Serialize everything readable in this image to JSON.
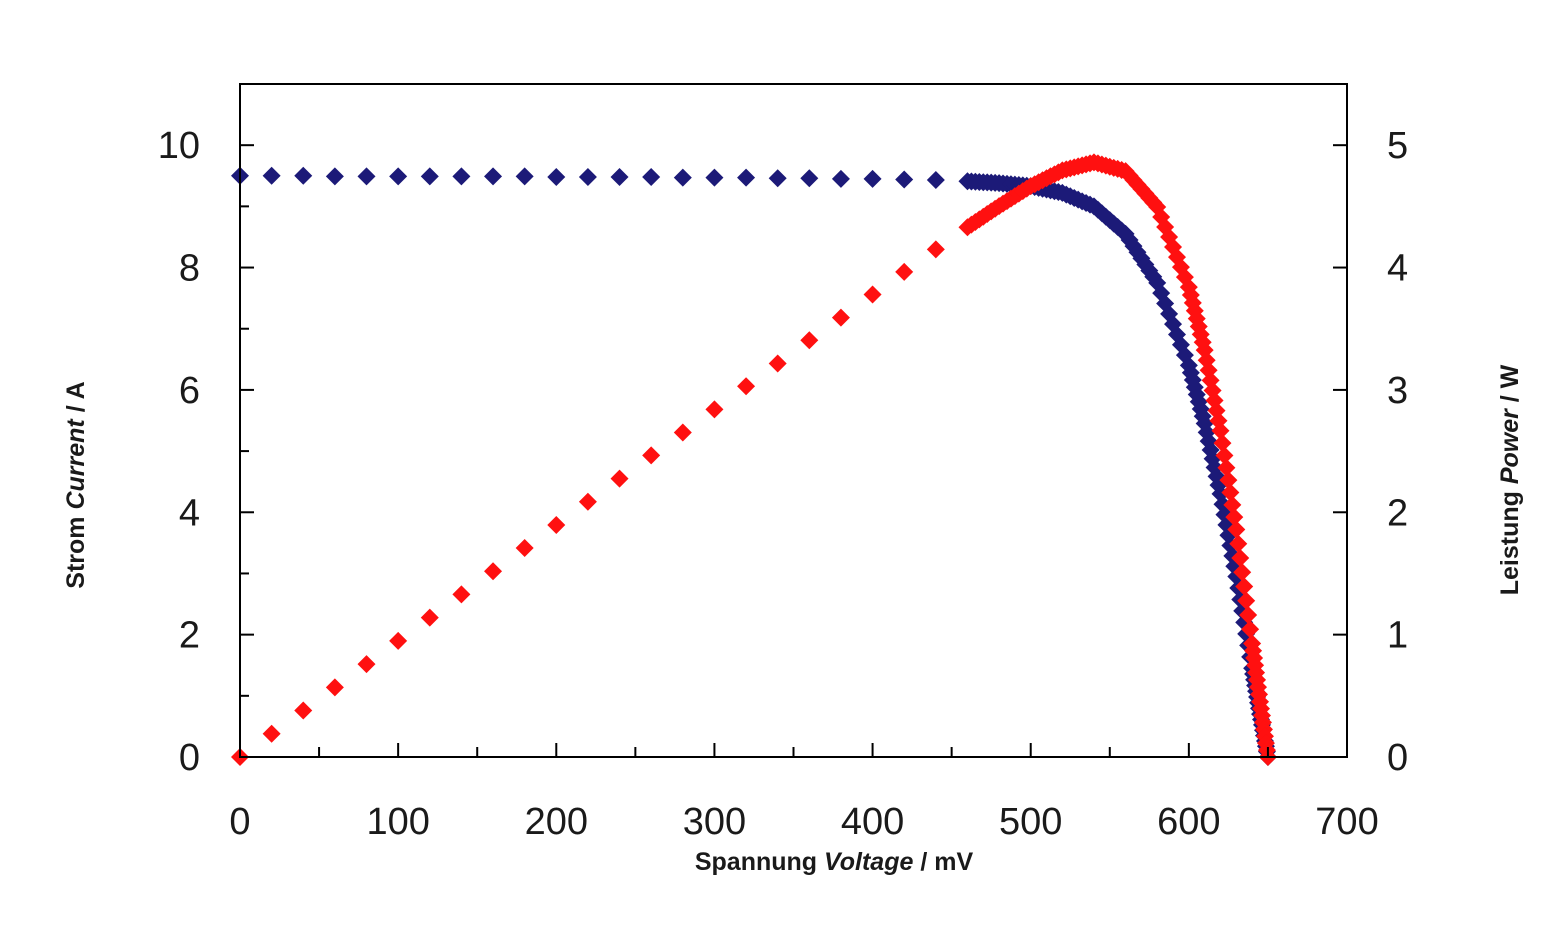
{
  "chart_data": {
    "type": "scatter",
    "title": "",
    "x_axis": {
      "label_plain": "Spannung ",
      "label_italic": "Voltage",
      "label_unit": " / mV",
      "min": 0,
      "max": 700,
      "major_step": 100,
      "minor_step": 50,
      "tick_labels": [
        "0",
        "100",
        "200",
        "300",
        "400",
        "500",
        "600",
        "700"
      ]
    },
    "y_left_axis": {
      "label_plain": "Strom ",
      "label_italic": "Current",
      "label_unit": " / A",
      "min": 0,
      "max": 11,
      "major_step": 2,
      "minor_step": 1,
      "tick_labels": [
        "0",
        "2",
        "4",
        "6",
        "8",
        "10"
      ]
    },
    "y_right_axis": {
      "label_plain": "Leistung ",
      "label_italic": "Power",
      "label_unit": " / W",
      "min": 0,
      "max": 5.5,
      "major_step": 1,
      "tick_labels": [
        "0",
        "1",
        "2",
        "3",
        "4",
        "5"
      ]
    },
    "grid": false,
    "legend": "none",
    "series": [
      {
        "axis": "left",
        "marker": "diamond",
        "color": "#1c1a78",
        "x": [
          0,
          20,
          40,
          60,
          80,
          100,
          120,
          140,
          160,
          180,
          200,
          220,
          240,
          260,
          280,
          300,
          320,
          340,
          360,
          380,
          400,
          420,
          440,
          460,
          480,
          500,
          520,
          540,
          560,
          580,
          600,
          610,
          620,
          630,
          640,
          645,
          650
        ],
        "y": [
          9.5,
          9.5,
          9.5,
          9.49,
          9.49,
          9.49,
          9.49,
          9.49,
          9.49,
          9.49,
          9.48,
          9.48,
          9.48,
          9.48,
          9.47,
          9.47,
          9.47,
          9.46,
          9.46,
          9.45,
          9.45,
          9.44,
          9.43,
          9.41,
          9.38,
          9.33,
          9.22,
          9.0,
          8.55,
          7.75,
          6.4,
          5.45,
          4.3,
          2.95,
          1.45,
          0.7,
          0.0
        ]
      },
      {
        "axis": "right",
        "marker": "diamond",
        "color": "#ff1010",
        "x": [
          0,
          20,
          40,
          60,
          80,
          100,
          120,
          140,
          160,
          180,
          200,
          220,
          240,
          260,
          280,
          300,
          320,
          340,
          360,
          380,
          400,
          420,
          440,
          460,
          480,
          500,
          520,
          540,
          560,
          580,
          600,
          610,
          620,
          630,
          640,
          645,
          650
        ],
        "y": [
          0.0,
          0.19,
          0.38,
          0.569,
          0.759,
          0.949,
          1.139,
          1.329,
          1.518,
          1.708,
          1.896,
          2.086,
          2.275,
          2.465,
          2.652,
          2.841,
          3.03,
          3.216,
          3.406,
          3.591,
          3.78,
          3.965,
          4.149,
          4.329,
          4.502,
          4.665,
          4.794,
          4.86,
          4.788,
          4.495,
          3.84,
          3.325,
          2.666,
          1.859,
          0.928,
          0.452,
          0.0
        ]
      }
    ]
  }
}
